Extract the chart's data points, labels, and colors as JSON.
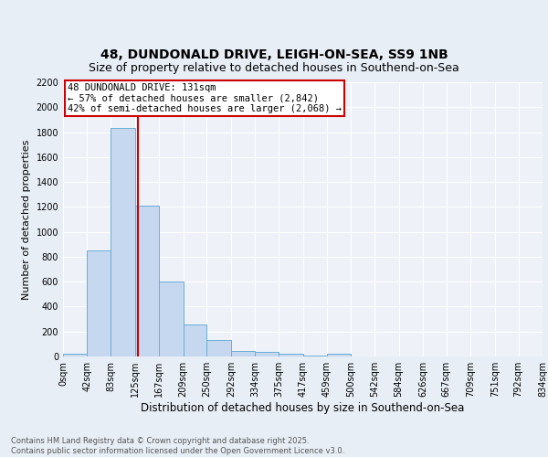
{
  "title1": "48, DUNDONALD DRIVE, LEIGH-ON-SEA, SS9 1NB",
  "title2": "Size of property relative to detached houses in Southend-on-Sea",
  "xlabel": "Distribution of detached houses by size in Southend-on-Sea",
  "ylabel": "Number of detached properties",
  "bin_edges": [
    0,
    42,
    83,
    125,
    167,
    209,
    250,
    292,
    334,
    375,
    417,
    459,
    500,
    542,
    584,
    626,
    667,
    709,
    751,
    792,
    834
  ],
  "bin_counts": [
    25,
    850,
    1830,
    1210,
    600,
    255,
    135,
    45,
    35,
    25,
    10,
    25,
    0,
    0,
    0,
    0,
    0,
    0,
    0,
    0
  ],
  "bar_color": "#c5d8f0",
  "bar_edge_color": "#6aaed6",
  "vline_x": 131,
  "vline_color": "#cc0000",
  "annotation_text": "48 DUNDONALD DRIVE: 131sqm\n← 57% of detached houses are smaller (2,842)\n42% of semi-detached houses are larger (2,068) →",
  "annotation_box_color": "#ffffff",
  "annotation_box_edge_color": "#cc0000",
  "ylim": [
    0,
    2200
  ],
  "yticks": [
    0,
    200,
    400,
    600,
    800,
    1000,
    1200,
    1400,
    1600,
    1800,
    2000,
    2200
  ],
  "bg_color": "#e8eef6",
  "plot_bg_color": "#eef2f8",
  "grid_color": "#ffffff",
  "footnote": "Contains HM Land Registry data © Crown copyright and database right 2025.\nContains public sector information licensed under the Open Government Licence v3.0.",
  "title1_fontsize": 10,
  "title2_fontsize": 9,
  "xlabel_fontsize": 8.5,
  "ylabel_fontsize": 8,
  "tick_fontsize": 7,
  "annotation_fontsize": 7.5,
  "footnote_fontsize": 6
}
